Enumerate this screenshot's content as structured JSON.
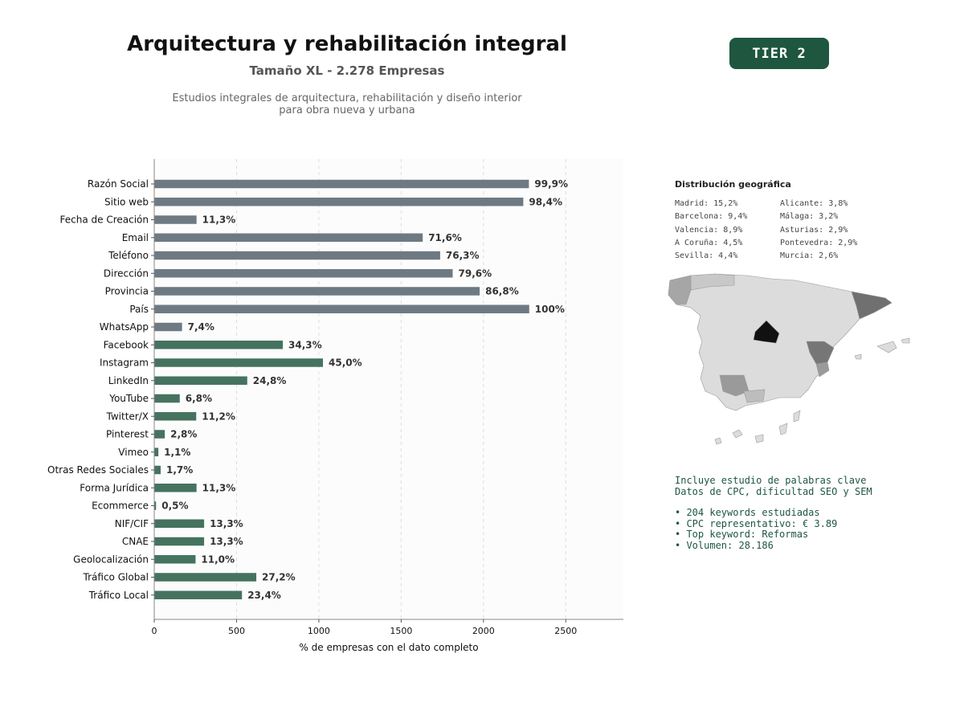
{
  "header": {
    "title": "Arquitectura y rehabilitación integral",
    "subtitle": "Tamaño XL - 2.278 Empresas",
    "description_line1": "Estudios integrales de arquitectura, rehabilitación y diseño interior",
    "description_line2": "para obra nueva y urbana",
    "tier_badge": "TIER 2"
  },
  "colors": {
    "gray_bar": "#6e7a83",
    "green_bar": "#45735f",
    "accent": "#1e5640"
  },
  "chart_data": {
    "type": "bar",
    "orientation": "horizontal",
    "title": "",
    "xlabel": "% de empresas con el dato completo",
    "ylabel": "",
    "xlim": [
      0,
      2850
    ],
    "xticks": [
      0,
      500,
      1000,
      1500,
      2000,
      2500
    ],
    "grid": "vertical dashed",
    "categories": [
      "Razón Social",
      "Sitio web",
      "Fecha de Creación",
      "Email",
      "Teléfono",
      "Dirección",
      "Provincia",
      "País",
      "WhatsApp",
      "Facebook",
      "Instagram",
      "LinkedIn",
      "YouTube",
      "Twitter/X",
      "Pinterest",
      "Vimeo",
      "Otras Redes Sociales",
      "Forma Jurídica",
      "Ecommerce",
      "NIF/CIF",
      "CNAE",
      "Geolocalización",
      "Tráfico Global",
      "Tráfico Local"
    ],
    "values": [
      2276,
      2242,
      257,
      1631,
      1737,
      1813,
      1977,
      2278,
      169,
      781,
      1025,
      565,
      155,
      255,
      64,
      25,
      39,
      257,
      11,
      303,
      303,
      251,
      620,
      533
    ],
    "labels": [
      "99,9%",
      "98,4%",
      "11,3%",
      "71,6%",
      "76,3%",
      "79,6%",
      "86,8%",
      "100%",
      "7,4%",
      "34,3%",
      "45,0%",
      "24,8%",
      "6,8%",
      "11,2%",
      "2,8%",
      "1,1%",
      "1,7%",
      "11,3%",
      "0,5%",
      "13,3%",
      "13,3%",
      "11,0%",
      "27,2%",
      "23,4%"
    ],
    "bar_groups": [
      "gray",
      "gray",
      "gray",
      "gray",
      "gray",
      "gray",
      "gray",
      "gray",
      "gray",
      "green",
      "green",
      "green",
      "green",
      "green",
      "green",
      "green",
      "green",
      "green",
      "green",
      "green",
      "green",
      "green",
      "green",
      "green"
    ]
  },
  "geo": {
    "title": "Distribución geográfica",
    "left": [
      "Madrid: 15,2%",
      "Barcelona: 9,4%",
      "Valencia: 8,9%",
      "A Coruña: 4,5%",
      "Sevilla: 4,4%"
    ],
    "right": [
      "Alicante: 3,8%",
      "Málaga: 3,2%",
      "Asturias: 2,9%",
      "Pontevedra: 2,9%",
      "Murcia: 2,6%"
    ]
  },
  "keywords": {
    "line1": "Incluye estudio de palabras clave",
    "line2": "Datos de CPC, dificultad SEO y SEM",
    "bullets": [
      "• 204 keywords estudiadas",
      "• CPC representativo: € 3.89",
      "• Top keyword: Reformas",
      "• Volumen: 28.186"
    ]
  }
}
